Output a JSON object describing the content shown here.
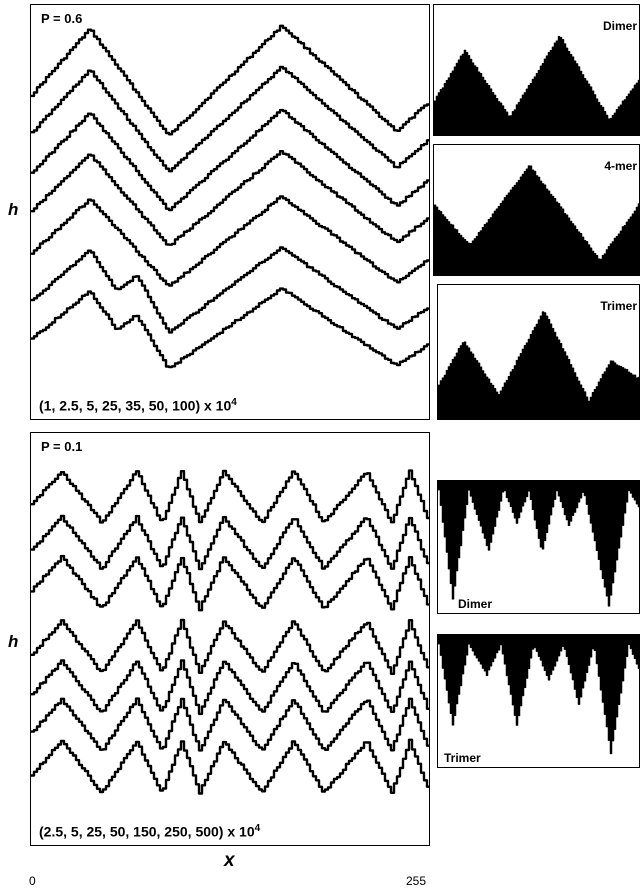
{
  "figure": {
    "top_panel": {
      "p_label": "P = 0.6",
      "times_label": "(1, 2.5, 5, 25, 35, 50, 100) x 10",
      "times_exp": "4",
      "ylabel": "h",
      "side_labels": [
        "Dimer",
        "4-mer",
        "Trimer"
      ]
    },
    "bottom_panel": {
      "p_label": "P = 0.1",
      "times_label": "(2.5, 5, 25, 50, 150, 250, 500) x 10",
      "times_exp": "4",
      "ylabel": "h",
      "side_labels": [
        "Dimer",
        "Trimer"
      ]
    },
    "xlabel": "x",
    "x_min_label": "0",
    "x_max_label": "255"
  },
  "chart_data": [
    {
      "type": "line",
      "title": "P = 0.6",
      "xlabel": "",
      "ylabel": "h",
      "xlim": [
        0,
        255
      ],
      "series_times_x1e4": [
        1,
        2.5,
        5,
        25,
        35,
        50,
        100
      ],
      "profile_peaks_x": [
        30,
        160
      ],
      "profile_valleys_x": [
        90,
        225
      ]
    },
    {
      "type": "line",
      "title": "P = 0.1",
      "xlabel": "x",
      "ylabel": "h",
      "xlim": [
        0,
        255
      ],
      "series_times_x1e4": [
        2.5,
        5,
        25,
        50,
        150,
        250,
        500
      ]
    }
  ]
}
